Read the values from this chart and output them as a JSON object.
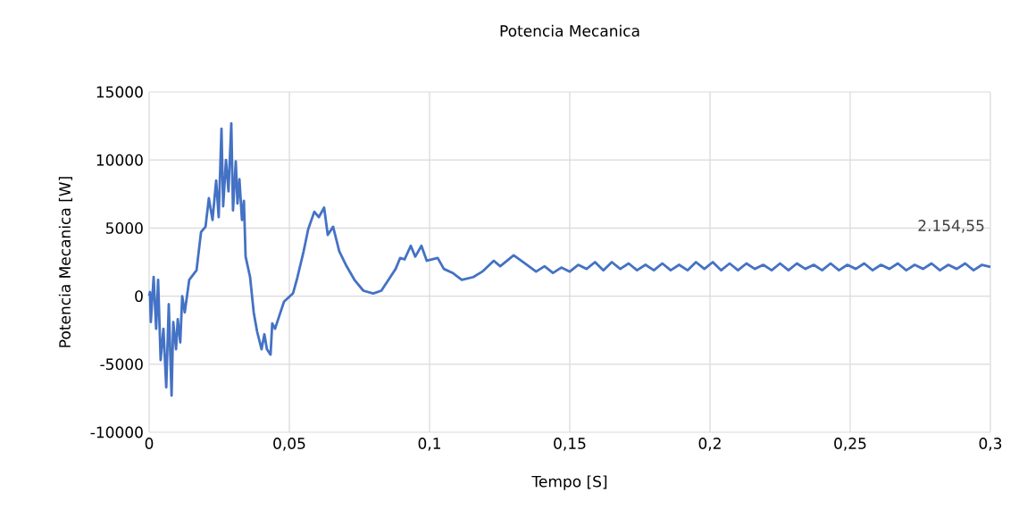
{
  "chart_data": {
    "type": "line",
    "title": "Potencia Mecanica",
    "xlabel": "Tempo [S]",
    "ylabel": "Potencia Mecanica [W]",
    "xlim": [
      0,
      0.3
    ],
    "ylim": [
      -10000,
      15000
    ],
    "xticks": [
      0,
      {
        "value": 0.05,
        "label": "0,05"
      },
      {
        "value": 0.1,
        "label": "0,1"
      },
      {
        "value": 0.15,
        "label": "0,15"
      },
      {
        "value": 0.2,
        "label": "0,2"
      },
      {
        "value": 0.25,
        "label": "0,25"
      },
      {
        "value": 0.3,
        "label": "0,3"
      }
    ],
    "yticks": [
      -10000,
      -5000,
      0,
      5000,
      10000,
      15000
    ],
    "grid": true,
    "marker": "none",
    "line_style": "solid",
    "annotations": [
      {
        "text": "2.154,55",
        "x": 0.3,
        "y": 2154.55
      }
    ],
    "series": [
      {
        "color": "#4472c4",
        "x": [
          0,
          0.0003,
          0.0006,
          0.0016,
          0.0025,
          0.0032,
          0.0041,
          0.0051,
          0.0061,
          0.007,
          0.008,
          0.0086,
          0.0096,
          0.0102,
          0.0111,
          0.0118,
          0.0127,
          0.0143,
          0.0169,
          0.0185,
          0.0201,
          0.0213,
          0.0226,
          0.0239,
          0.0248,
          0.0258,
          0.0264,
          0.0274,
          0.0283,
          0.0293,
          0.0299,
          0.0309,
          0.0315,
          0.0322,
          0.0331,
          0.0338,
          0.0344,
          0.036,
          0.0373,
          0.0385,
          0.0401,
          0.0411,
          0.042,
          0.0433,
          0.0439,
          0.0449,
          0.0465,
          0.0481,
          0.0513,
          0.0529,
          0.0551,
          0.0567,
          0.0589,
          0.0605,
          0.0624,
          0.0637,
          0.0656,
          0.0678,
          0.0704,
          0.0732,
          0.0764,
          0.0799,
          0.0828,
          0.086,
          0.0879,
          0.0895,
          0.0911,
          0.0933,
          0.0949,
          0.0971,
          0.099,
          0.1029,
          0.1051,
          0.1083,
          0.1115,
          0.1156,
          0.1188,
          0.1229,
          0.1252,
          0.13,
          0.1341,
          0.138,
          0.141,
          0.144,
          0.147,
          0.15,
          0.153,
          0.156,
          0.159,
          0.162,
          0.165,
          0.168,
          0.171,
          0.174,
          0.177,
          0.18,
          0.183,
          0.186,
          0.189,
          0.192,
          0.195,
          0.198,
          0.201,
          0.204,
          0.207,
          0.21,
          0.213,
          0.216,
          0.219,
          0.222,
          0.225,
          0.228,
          0.231,
          0.234,
          0.237,
          0.24,
          0.243,
          0.246,
          0.249,
          0.252,
          0.255,
          0.258,
          0.261,
          0.264,
          0.267,
          0.27,
          0.273,
          0.276,
          0.279,
          0.282,
          0.285,
          0.288,
          0.291,
          0.294,
          0.297,
          0.3
        ],
        "values": [
          0,
          300,
          -1900,
          1400,
          -2400,
          1200,
          -4700,
          -2400,
          -6700,
          -600,
          -7300,
          -1900,
          -3900,
          -1700,
          -3400,
          0,
          -1200,
          1200,
          1900,
          4700,
          5100,
          7200,
          5600,
          8500,
          5800,
          12300,
          6600,
          10000,
          7700,
          12700,
          6300,
          9900,
          6800,
          8600,
          5600,
          7000,
          2900,
          1400,
          -1200,
          -2600,
          -3900,
          -2800,
          -3900,
          -4300,
          -2000,
          -2400,
          -1400,
          -400,
          200,
          1400,
          3300,
          4900,
          6200,
          5800,
          6500,
          4500,
          5100,
          3300,
          2200,
          1200,
          400,
          200,
          400,
          1400,
          2000,
          2800,
          2700,
          3700,
          2900,
          3700,
          2600,
          2800,
          2000,
          1700,
          1200,
          1400,
          1800,
          2600,
          2200,
          3000,
          2400,
          1800,
          2200,
          1700,
          2100,
          1800,
          2300,
          2000,
          2500,
          1900,
          2500,
          2000,
          2400,
          1900,
          2300,
          1900,
          2400,
          1900,
          2300,
          1900,
          2500,
          2000,
          2500,
          1900,
          2400,
          1900,
          2400,
          2000,
          2300,
          1900,
          2400,
          1900,
          2400,
          2000,
          2300,
          1900,
          2400,
          1900,
          2300,
          2000,
          2400,
          1900,
          2300,
          2000,
          2400,
          1900,
          2300,
          2000,
          2400,
          1900,
          2300,
          2000,
          2400,
          1900,
          2300,
          2154.55
        ]
      }
    ]
  }
}
